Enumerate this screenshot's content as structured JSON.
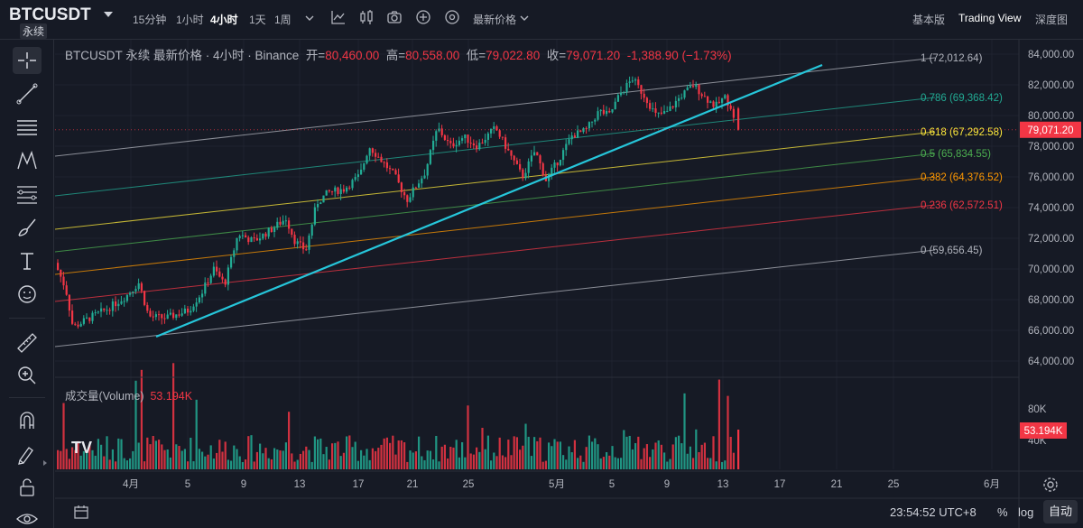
{
  "header": {
    "symbol": "BTCUSDT",
    "contract_type": "永续",
    "timeframes": [
      {
        "label": "15分钟",
        "active": false
      },
      {
        "label": "1小时",
        "active": false
      },
      {
        "label": "4小时",
        "active": true
      },
      {
        "label": "1天",
        "active": false
      },
      {
        "label": "1周",
        "active": false
      }
    ],
    "price_type": "最新价格",
    "modes": [
      {
        "label": "基本版",
        "active": false
      },
      {
        "label": "Trading View",
        "active": true
      },
      {
        "label": "深度图",
        "active": false
      }
    ]
  },
  "legend": {
    "title": "BTCUSDT 永续 最新价格 · 4小时 · Binance",
    "open_label": "开=",
    "open": "80,460.00",
    "high_label": "高=",
    "high": "80,558.00",
    "low_label": "低=",
    "low": "79,022.80",
    "close_label": "收=",
    "close": "79,071.20",
    "change": "-1,388.90 (−1.73%)"
  },
  "volume_legend": {
    "label": "成交量(Volume)",
    "value": "53.194K"
  },
  "price_axis": {
    "ticks": [
      "84,000.00",
      "82,000.00",
      "80,000.00",
      "78,000.00",
      "76,000.00",
      "74,000.00",
      "72,000.00",
      "70,000.00",
      "68,000.00",
      "66,000.00",
      "64,000.00"
    ],
    "current_price": "79,071.20"
  },
  "volume_axis": {
    "ticks": [
      "80K",
      "40K"
    ],
    "current": "53.194K"
  },
  "time_axis": {
    "ticks": [
      "4月",
      "5",
      "9",
      "13",
      "17",
      "21",
      "25",
      "5月",
      "5",
      "9",
      "13",
      "17",
      "21",
      "25",
      "6月"
    ]
  },
  "fib_levels": [
    {
      "label": "1 (72,012.64)",
      "color": "#b2b5be"
    },
    {
      "label": "0.786 (69,368.42)",
      "color": "#22ab94"
    },
    {
      "label": "0.618 (67,292.58)",
      "color": "#ffeb3b"
    },
    {
      "label": "0.5 (65,834.55)",
      "color": "#4caf50"
    },
    {
      "label": "0.382 (64,376.52)",
      "color": "#ff9800"
    },
    {
      "label": "0.236 (62,572.51)",
      "color": "#f23645"
    },
    {
      "label": "0 (59,656.45)",
      "color": "#b2b5be"
    }
  ],
  "footer": {
    "clock": "23:54:52 UTC+8",
    "percent_label": "%",
    "log_label": "log",
    "auto_label": "自动"
  },
  "colors": {
    "up": "#22ab94",
    "down": "#f23645",
    "trendline": "#26c6da",
    "background": "#161a25"
  }
}
